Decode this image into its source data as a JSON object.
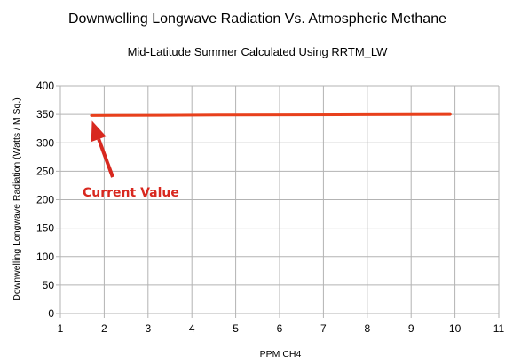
{
  "chart_data": {
    "type": "line",
    "title": "Downwelling Longwave Radiation Vs. Atmospheric Methane",
    "subtitle": "Mid-Latitude Summer Calculated Using RRTM_LW",
    "xlabel": "PPM CH4",
    "ylabel": "Downwelling Longwave Radiation (Watts / M Sq.)",
    "xlim": [
      1,
      11
    ],
    "ylim": [
      0,
      400
    ],
    "x_ticks": [
      1,
      2,
      3,
      4,
      5,
      6,
      7,
      8,
      9,
      10,
      11
    ],
    "y_ticks": [
      0,
      50,
      100,
      150,
      200,
      250,
      300,
      350,
      400
    ],
    "grid": true,
    "series": [
      {
        "color": "#e8401c",
        "x": [
          1.7,
          3.3,
          4.6,
          6.3,
          7.9,
          9.9
        ],
        "y": [
          348,
          348.5,
          349,
          349.3,
          349.6,
          350
        ]
      }
    ],
    "annotations": [
      {
        "text": "Current Value",
        "x": 1.7,
        "y": 348,
        "color": "#d8281f"
      }
    ]
  }
}
